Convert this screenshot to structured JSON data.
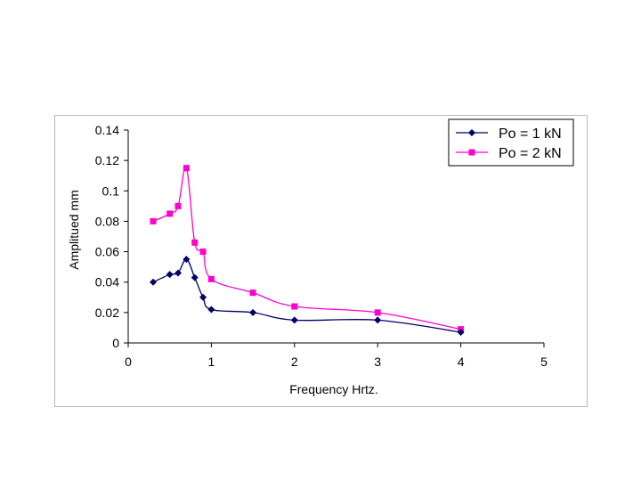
{
  "chart_data": {
    "type": "line",
    "title": "",
    "xlabel": "Frequency Hrtz.",
    "ylabel": "Amplitued mm",
    "xlim": [
      0,
      5
    ],
    "ylim": [
      0,
      0.14
    ],
    "x_ticks": [
      "0",
      "1",
      "2",
      "3",
      "4",
      "5"
    ],
    "y_ticks": [
      "0",
      "0.02",
      "0.04",
      "0.06",
      "0.08",
      "0.1",
      "0.12",
      "0.14"
    ],
    "grid": false,
    "legend_position": "top-right",
    "series": [
      {
        "name": "Po = 1 kN",
        "color": "#000066",
        "marker": "diamond",
        "x": [
          0.3,
          0.5,
          0.6,
          0.7,
          0.8,
          0.9,
          1.0,
          1.5,
          2.0,
          3.0,
          4.0
        ],
        "values": [
          0.04,
          0.045,
          0.046,
          0.055,
          0.043,
          0.03,
          0.022,
          0.02,
          0.015,
          0.015,
          0.007
        ]
      },
      {
        "name": "Po = 2 kN",
        "color": "#ff00cc",
        "marker": "square",
        "x": [
          0.3,
          0.5,
          0.6,
          0.7,
          0.8,
          0.9,
          1.0,
          1.5,
          2.0,
          3.0,
          4.0
        ],
        "values": [
          0.08,
          0.085,
          0.09,
          0.115,
          0.066,
          0.06,
          0.042,
          0.033,
          0.024,
          0.02,
          0.009
        ]
      }
    ]
  }
}
